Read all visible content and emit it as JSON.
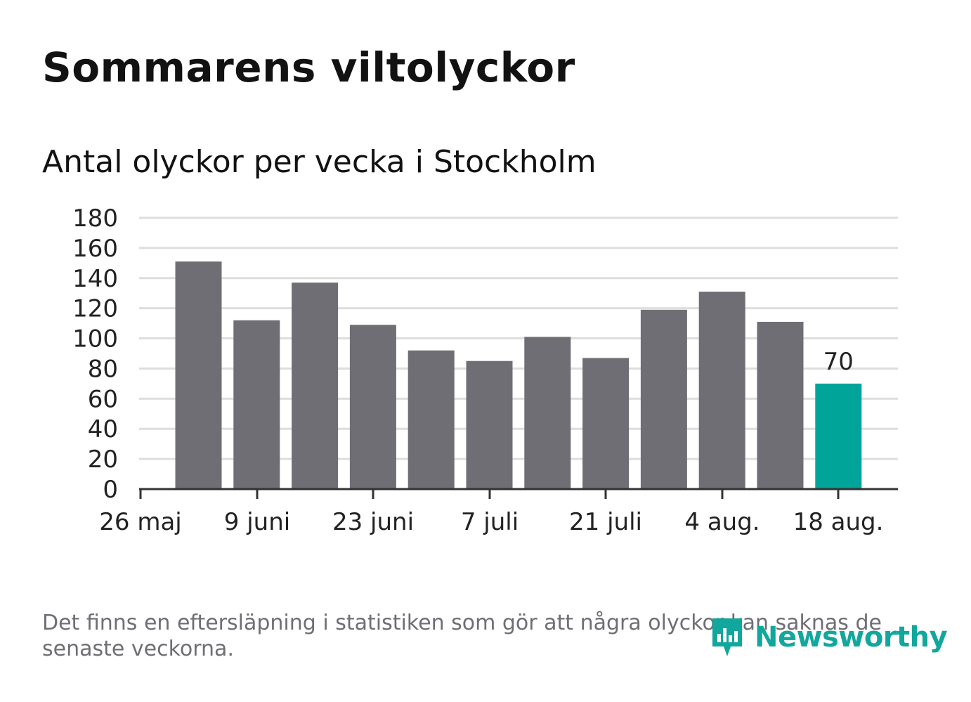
{
  "header": {
    "title": "Sommarens viltolyckor",
    "subtitle": "Antal olyckor per vecka i Stockholm"
  },
  "chart_data": {
    "type": "bar",
    "title": "Sommarens viltolyckor",
    "subtitle": "Antal olyckor per vecka i Stockholm",
    "ylim": [
      0,
      180
    ],
    "yticks": [
      0,
      20,
      40,
      60,
      80,
      100,
      120,
      140,
      160,
      180
    ],
    "x_tick_labels": [
      "26 maj",
      "9 juni",
      "23 juni",
      "7 juli",
      "21 juli",
      "4 aug.",
      "18 aug."
    ],
    "values": [
      151,
      112,
      137,
      109,
      92,
      85,
      101,
      87,
      119,
      131,
      111,
      70
    ],
    "highlight_index": 11,
    "highlight_label": "70",
    "grid": true,
    "colors": {
      "bar": "#6f6e75",
      "highlight": "#00a499",
      "grid": "#dedede",
      "axis": "#333333"
    }
  },
  "footer": {
    "note": "Det finns en eftersläpning i statistiken som gör att några olyckor kan saknas de senaste veckorna.",
    "logo_text": "Newsworthy",
    "logo_icon": "newsworthy-logo-icon"
  }
}
